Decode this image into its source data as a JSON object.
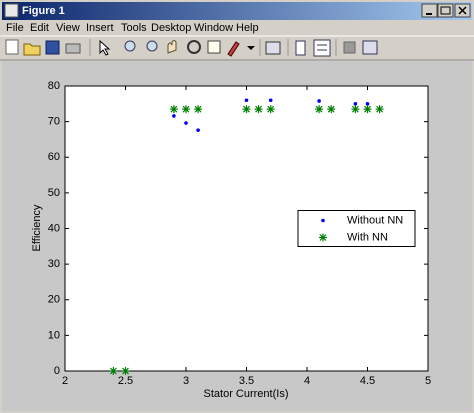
{
  "window": {
    "title": "Figure 1",
    "menu": [
      "File",
      "Edit",
      "View",
      "Insert",
      "Tools",
      "Desktop",
      "Window",
      "Help"
    ]
  },
  "chart_data": {
    "type": "scatter",
    "xlabel": "Stator Current(Is)",
    "ylabel": "Efficiency",
    "xlim": [
      2,
      5
    ],
    "xticks": [
      2,
      2.5,
      3,
      3.5,
      4,
      4.5,
      5
    ],
    "ylim": [
      0,
      80
    ],
    "yticks": [
      0,
      10,
      20,
      30,
      40,
      50,
      60,
      70,
      80
    ],
    "grid": false,
    "legend": "right",
    "series": [
      {
        "name": "Without NN",
        "color": "#0000ff",
        "marker": "dot",
        "x": [
          2.4,
          2.5,
          2.9,
          3.0,
          3.1,
          3.5,
          3.7,
          4.1,
          4.4,
          4.5
        ],
        "values": [
          0,
          0,
          71.6,
          69.6,
          67.6,
          76,
          76,
          75.8,
          75,
          75
        ]
      },
      {
        "name": "With NN",
        "color": "#008000",
        "marker": "star",
        "x": [
          2.4,
          2.5,
          2.9,
          3.0,
          3.1,
          3.5,
          3.6,
          3.7,
          4.1,
          4.2,
          4.4,
          4.5,
          4.6
        ],
        "values": [
          0,
          0,
          73.5,
          73.5,
          73.5,
          73.5,
          73.5,
          73.5,
          73.5,
          73.5,
          73.5,
          73.5,
          73.5
        ]
      }
    ]
  }
}
